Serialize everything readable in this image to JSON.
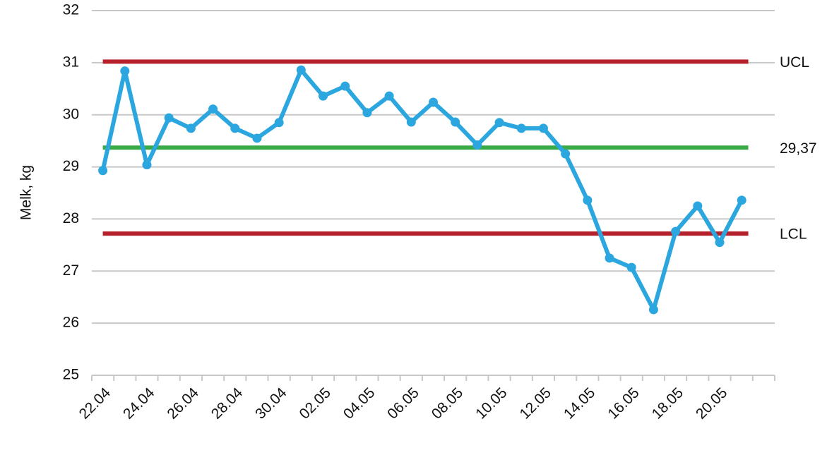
{
  "chart_data": {
    "type": "line",
    "ylabel": "Melk, kg",
    "categories": [
      "22.04",
      null,
      "24.04",
      null,
      "26.04",
      null,
      "28.04",
      null,
      "30.04",
      null,
      "02.05",
      null,
      "04.05",
      null,
      "06.05",
      null,
      "08.05",
      null,
      "10.05",
      null,
      "12.05",
      null,
      "14.05",
      null,
      "16.05",
      null,
      "18.05",
      null,
      "20.05",
      null,
      null
    ],
    "series": [
      {
        "name": "Melk",
        "color": "#2ba6df",
        "values": [
          28.93,
          30.84,
          29.04,
          29.94,
          29.74,
          30.11,
          29.74,
          29.55,
          29.85,
          30.86,
          30.36,
          30.55,
          30.04,
          30.36,
          29.86,
          30.24,
          29.86,
          29.42,
          29.85,
          29.74,
          29.74,
          29.25,
          28.36,
          27.25,
          27.07,
          26.26,
          27.76,
          28.25,
          27.55,
          28.36,
          null
        ]
      }
    ],
    "control_lines": [
      {
        "label": "UCL",
        "value": 31.02,
        "color": "#b5202a"
      },
      {
        "label": "29,37",
        "value": 29.37,
        "color": "#3aaa48"
      },
      {
        "label": "LCL",
        "value": 27.72,
        "color": "#b5202a"
      }
    ],
    "ylim": [
      25,
      32
    ],
    "yticks": [
      25,
      26,
      27,
      28,
      29,
      30,
      31,
      32
    ],
    "grid": true
  }
}
